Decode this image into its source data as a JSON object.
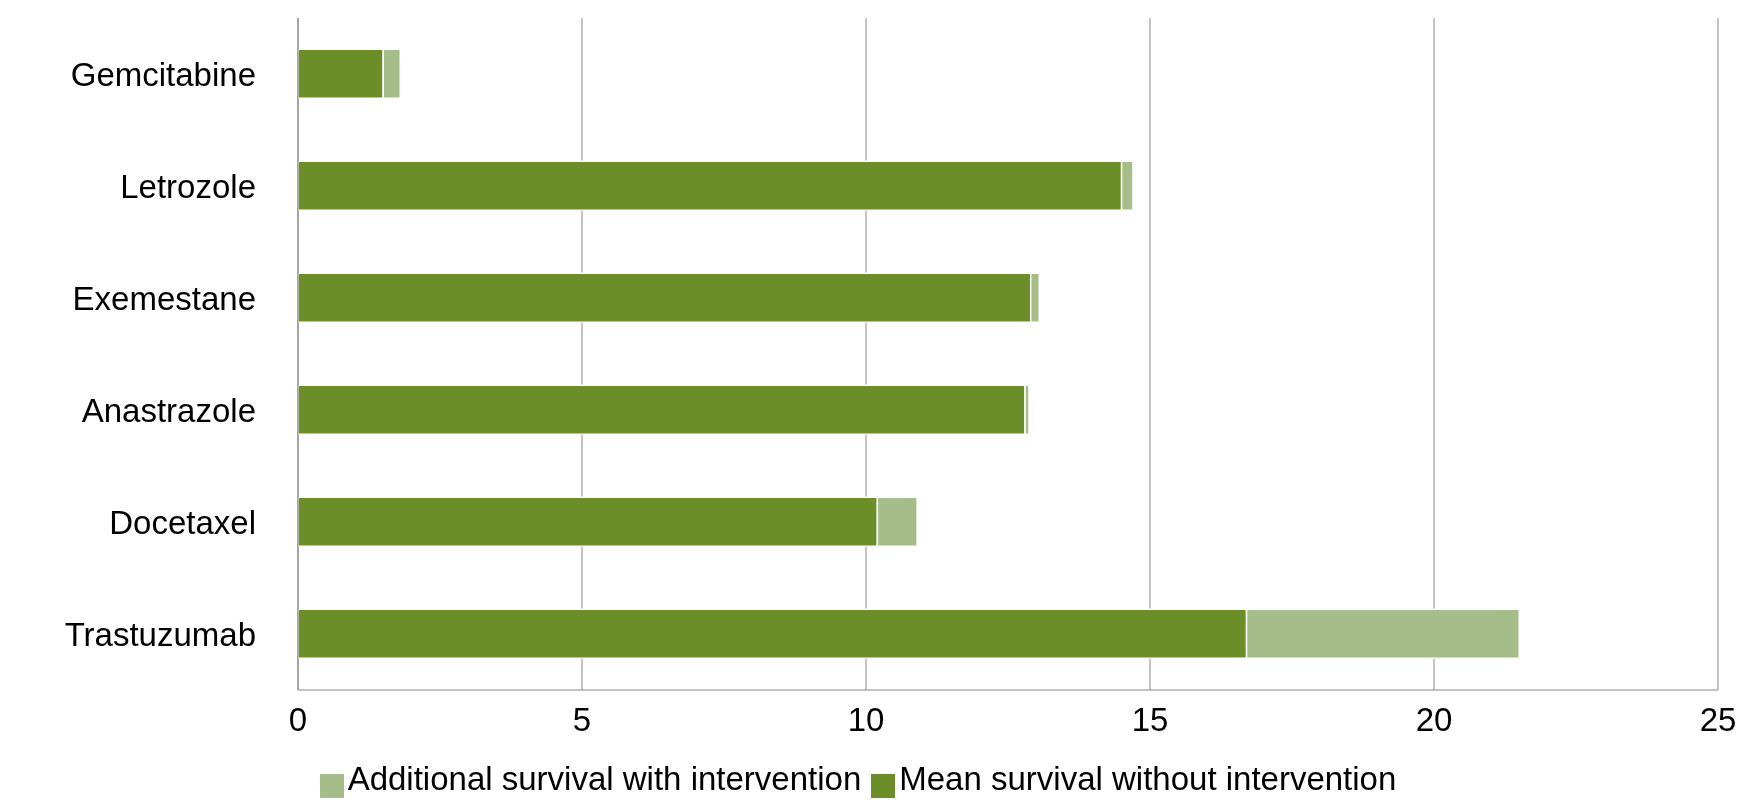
{
  "chart_data": {
    "type": "bar",
    "orientation": "horizontal",
    "stacked": true,
    "categories": [
      "Gemcitabine",
      "Letrozole",
      "Exemestane",
      "Anastrazole",
      "Docetaxel",
      "Trastuzumab"
    ],
    "series": [
      {
        "name": "Mean survival without intervention",
        "color": "#6b8e29",
        "values": [
          1.5,
          14.5,
          12.9,
          12.8,
          10.2,
          16.7
        ]
      },
      {
        "name": "Additional survival with intervention",
        "color": "#a5bd88",
        "values": [
          0.3,
          0.2,
          0.15,
          0.07,
          0.7,
          4.8
        ]
      }
    ],
    "xlim": [
      0,
      25
    ],
    "xticks": [
      0,
      5,
      10,
      15,
      20,
      25
    ],
    "grid": "x",
    "legend": "bottom"
  }
}
